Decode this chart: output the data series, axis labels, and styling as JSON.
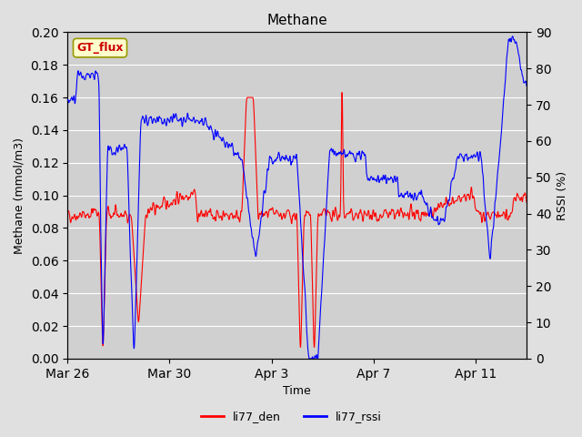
{
  "title": "Methane",
  "xlabel": "Time",
  "ylabel_left": "Methane (mmol/m3)",
  "ylabel_right": "RSSI (%)",
  "ylim_left": [
    0.0,
    0.2
  ],
  "ylim_right": [
    0,
    90
  ],
  "yticks_left": [
    0.0,
    0.02,
    0.04,
    0.06,
    0.08,
    0.1,
    0.12,
    0.14,
    0.16,
    0.18,
    0.2
  ],
  "yticks_right": [
    0,
    10,
    20,
    30,
    40,
    50,
    60,
    70,
    80,
    90
  ],
  "xtick_labels": [
    "Mar 26",
    "Mar 30",
    "Apr 3",
    "Apr 7",
    "Apr 11"
  ],
  "color_den": "#ff0000",
  "color_rssi": "#0000ff",
  "bg_color": "#e8e8e8",
  "plot_bg": "#d8d8d8",
  "legend_labels": [
    "li77_den",
    "li77_rssi"
  ],
  "gt_flux_bg": "#ffffcc",
  "gt_flux_border": "#999900",
  "gt_flux_text_color": "#cc0000"
}
